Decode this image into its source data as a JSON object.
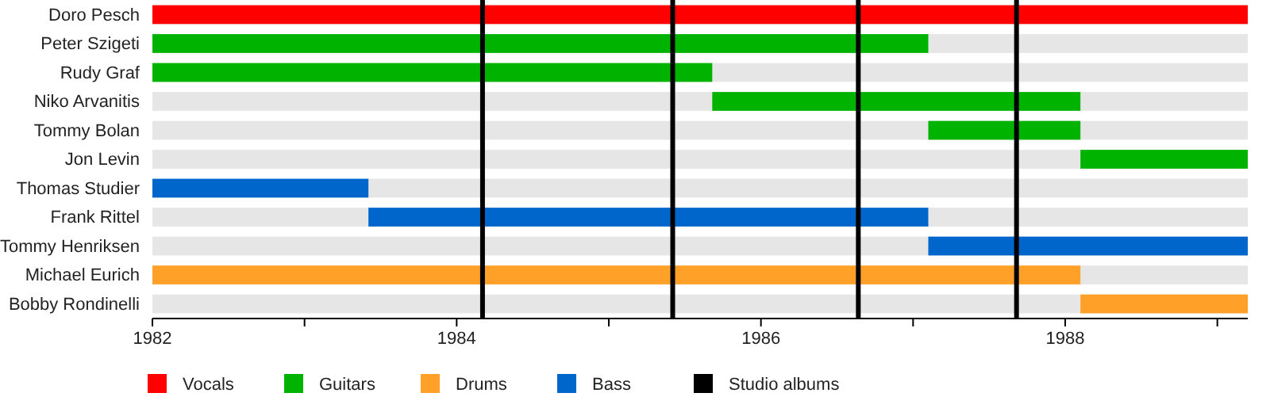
{
  "chart_data": {
    "type": "bar",
    "orientation": "horizontal",
    "legend": "bottom",
    "categories": [
      "Doro Pesch",
      "Peter Szigeti",
      "Rudy Graf",
      "Niko Arvanitis",
      "Tommy Bolan",
      "Jon Levin",
      "Thomas Studier",
      "Frank Rittel",
      "Tommy Henriksen",
      "Michael Eurich",
      "Bobby Rondinelli"
    ],
    "series": [
      {
        "name": "Vocals",
        "color": "#ff0000",
        "base": [
          1982,
          null,
          null,
          null,
          null,
          null,
          null,
          null,
          null,
          null,
          null
        ],
        "values": [
          7.2,
          null,
          null,
          null,
          null,
          null,
          null,
          null,
          null,
          null,
          null
        ]
      },
      {
        "name": "Guitars",
        "color": "#00b300",
        "base": [
          null,
          1982,
          1982,
          1985.68,
          1987.1,
          1988.1,
          null,
          null,
          null,
          null,
          null
        ],
        "values": [
          null,
          5.1,
          3.68,
          2.42,
          1.0,
          1.1,
          null,
          null,
          null,
          null,
          null
        ]
      },
      {
        "name": "Drums",
        "color": "#ffa028",
        "base": [
          null,
          null,
          null,
          null,
          null,
          null,
          null,
          null,
          null,
          1982,
          1988.1
        ],
        "values": [
          null,
          null,
          null,
          null,
          null,
          null,
          null,
          null,
          null,
          6.1,
          1.1
        ]
      },
      {
        "name": "Bass",
        "color": "#0066cc",
        "base": [
          null,
          null,
          null,
          null,
          null,
          null,
          1982,
          1983.42,
          1987.1,
          null,
          null
        ],
        "values": [
          null,
          null,
          null,
          null,
          null,
          null,
          1.42,
          3.68,
          2.1,
          null,
          null
        ]
      }
    ],
    "ref_lines": [
      {
        "axis": "x",
        "value": 1984.17,
        "label": "Studio albums",
        "color": "#000000"
      },
      {
        "axis": "x",
        "value": 1985.42,
        "color": "#000000"
      },
      {
        "axis": "x",
        "value": 1986.64,
        "color": "#000000"
      },
      {
        "axis": "x",
        "value": 1987.68,
        "color": "#000000"
      }
    ],
    "xlim": [
      1982,
      1989.2
    ],
    "xticks": [
      1982,
      {
        "value": 1983,
        "label": null
      },
      1984,
      {
        "value": 1985,
        "label": null
      },
      1986,
      {
        "value": 1987,
        "label": null
      },
      1988,
      {
        "value": 1989,
        "label": null
      }
    ]
  }
}
